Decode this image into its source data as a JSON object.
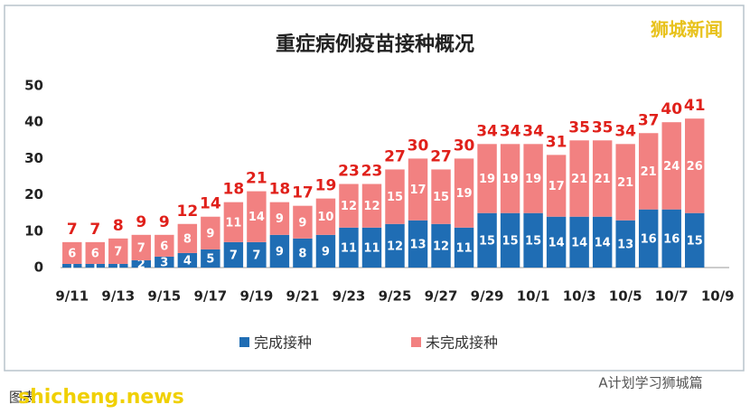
{
  "chart_data": {
    "type": "bar",
    "stacked": true,
    "title": "重症病例疫苗接种概况",
    "categories": [
      "9/11",
      null,
      "9/13",
      null,
      "9/15",
      null,
      "9/17",
      null,
      "9/19",
      null,
      "9/21",
      null,
      "9/23",
      null,
      "9/25",
      null,
      "9/27",
      null,
      "9/29",
      null,
      "10/1",
      null,
      "10/3",
      null,
      "10/5",
      null,
      "10/7",
      null,
      "10/9"
    ],
    "series": [
      {
        "name": "完成接种",
        "color": "#1f6db4",
        "values": [
          1,
          1,
          1,
          2,
          3,
          4,
          5,
          7,
          7,
          9,
          8,
          9,
          11,
          11,
          12,
          13,
          12,
          11,
          15,
          15,
          15,
          14,
          14,
          14,
          13,
          16,
          16,
          15,
          null
        ]
      },
      {
        "name": "未完成接种",
        "color": "#f28181",
        "values": [
          6,
          6,
          7,
          7,
          6,
          8,
          9,
          11,
          14,
          9,
          9,
          10,
          12,
          12,
          15,
          17,
          15,
          19,
          19,
          19,
          19,
          17,
          21,
          21,
          21,
          21,
          24,
          26,
          null
        ]
      }
    ],
    "totals": [
      7,
      7,
      8,
      9,
      9,
      12,
      14,
      18,
      21,
      18,
      17,
      19,
      23,
      23,
      27,
      30,
      27,
      30,
      34,
      34,
      34,
      31,
      35,
      35,
      34,
      37,
      40,
      41,
      null
    ],
    "ylim": [
      0,
      50
    ],
    "yticks": [
      0,
      10,
      20,
      30,
      40,
      50
    ],
    "grid": false,
    "legend": "bottom",
    "watermark": "狮城新闻",
    "footer_left": "图表",
    "footer_site": "shicheng.news",
    "footer_right": "A计划学习狮城篇"
  }
}
